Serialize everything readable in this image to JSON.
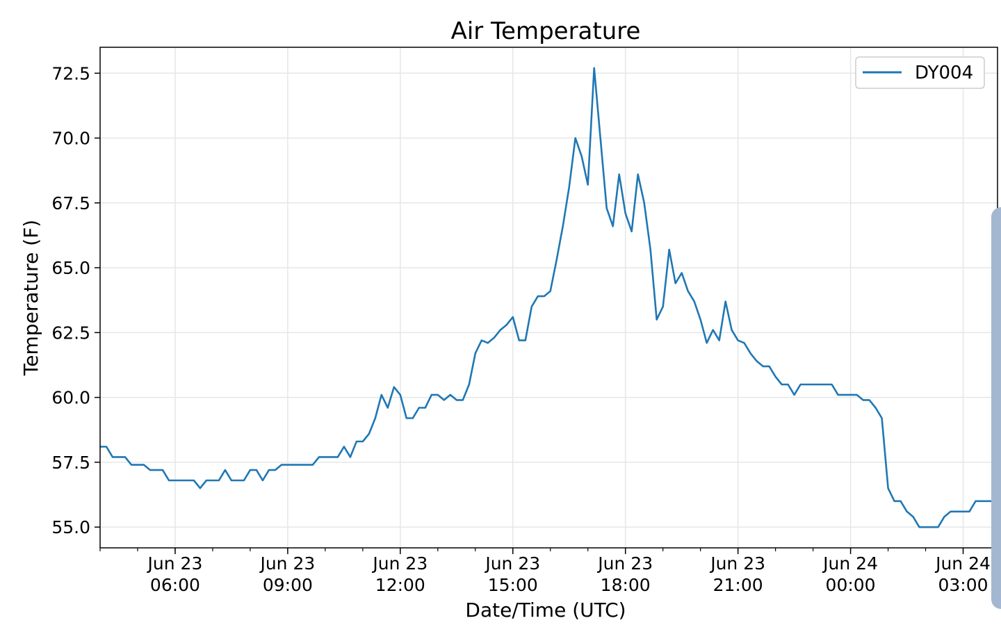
{
  "chart_data": {
    "type": "line",
    "title": "Air Temperature",
    "xlabel": "Date/Time (UTC)",
    "ylabel": "Temperature (F)",
    "xlim": [
      "2023-06-23T04:00",
      "2023-06-24T03:55"
    ],
    "ylim": [
      54.2,
      73.5
    ],
    "grid": true,
    "legend_position": "top-right",
    "colors": {
      "series": "#1f77b4",
      "grid": "#e6e6e6"
    },
    "y_ticks": [
      {
        "value": 55.0,
        "label": "55.0"
      },
      {
        "value": 57.5,
        "label": "57.5"
      },
      {
        "value": 60.0,
        "label": "60.0"
      },
      {
        "value": 62.5,
        "label": "62.5"
      },
      {
        "value": 65.0,
        "label": "65.0"
      },
      {
        "value": 67.5,
        "label": "67.5"
      },
      {
        "value": 70.0,
        "label": "70.0"
      },
      {
        "value": 72.5,
        "label": "72.5"
      }
    ],
    "x_ticks": [
      {
        "value": "2023-06-23T06:00",
        "line1": "Jun 23",
        "line2": "06:00"
      },
      {
        "value": "2023-06-23T09:00",
        "line1": "Jun 23",
        "line2": "09:00"
      },
      {
        "value": "2023-06-23T12:00",
        "line1": "Jun 23",
        "line2": "12:00"
      },
      {
        "value": "2023-06-23T15:00",
        "line1": "Jun 23",
        "line2": "15:00"
      },
      {
        "value": "2023-06-23T18:00",
        "line1": "Jun 23",
        "line2": "18:00"
      },
      {
        "value": "2023-06-23T21:00",
        "line1": "Jun 23",
        "line2": "21:00"
      },
      {
        "value": "2023-06-24T00:00",
        "line1": "Jun 24",
        "line2": "00:00"
      },
      {
        "value": "2023-06-24T03:00",
        "line1": "Jun 24",
        "line2": "03:00"
      }
    ],
    "series": [
      {
        "name": "DY004",
        "points": [
          [
            "2023-06-23T04:00",
            58.1
          ],
          [
            "2023-06-23T04:10",
            58.1
          ],
          [
            "2023-06-23T04:20",
            57.7
          ],
          [
            "2023-06-23T04:40",
            57.7
          ],
          [
            "2023-06-23T04:50",
            57.4
          ],
          [
            "2023-06-23T05:10",
            57.4
          ],
          [
            "2023-06-23T05:20",
            57.2
          ],
          [
            "2023-06-23T05:40",
            57.2
          ],
          [
            "2023-06-23T05:50",
            56.8
          ],
          [
            "2023-06-23T06:30",
            56.8
          ],
          [
            "2023-06-23T06:40",
            56.5
          ],
          [
            "2023-06-23T06:50",
            56.8
          ],
          [
            "2023-06-23T07:10",
            56.8
          ],
          [
            "2023-06-23T07:20",
            57.2
          ],
          [
            "2023-06-23T07:30",
            56.8
          ],
          [
            "2023-06-23T07:50",
            56.8
          ],
          [
            "2023-06-23T08:00",
            57.2
          ],
          [
            "2023-06-23T08:10",
            57.2
          ],
          [
            "2023-06-23T08:20",
            56.8
          ],
          [
            "2023-06-23T08:30",
            57.2
          ],
          [
            "2023-06-23T08:40",
            57.2
          ],
          [
            "2023-06-23T08:50",
            57.4
          ],
          [
            "2023-06-23T09:40",
            57.4
          ],
          [
            "2023-06-23T09:50",
            57.7
          ],
          [
            "2023-06-23T10:20",
            57.7
          ],
          [
            "2023-06-23T10:30",
            58.1
          ],
          [
            "2023-06-23T10:40",
            57.7
          ],
          [
            "2023-06-23T10:50",
            58.3
          ],
          [
            "2023-06-23T11:00",
            58.3
          ],
          [
            "2023-06-23T11:10",
            58.6
          ],
          [
            "2023-06-23T11:20",
            59.2
          ],
          [
            "2023-06-23T11:30",
            60.1
          ],
          [
            "2023-06-23T11:40",
            59.6
          ],
          [
            "2023-06-23T11:50",
            60.4
          ],
          [
            "2023-06-23T12:00",
            60.1
          ],
          [
            "2023-06-23T12:10",
            59.2
          ],
          [
            "2023-06-23T12:20",
            59.2
          ],
          [
            "2023-06-23T12:30",
            59.6
          ],
          [
            "2023-06-23T12:40",
            59.6
          ],
          [
            "2023-06-23T12:50",
            60.1
          ],
          [
            "2023-06-23T13:00",
            60.1
          ],
          [
            "2023-06-23T13:10",
            59.9
          ],
          [
            "2023-06-23T13:20",
            60.1
          ],
          [
            "2023-06-23T13:30",
            59.9
          ],
          [
            "2023-06-23T13:40",
            59.9
          ],
          [
            "2023-06-23T13:50",
            60.5
          ],
          [
            "2023-06-23T14:00",
            61.7
          ],
          [
            "2023-06-23T14:10",
            62.2
          ],
          [
            "2023-06-23T14:20",
            62.1
          ],
          [
            "2023-06-23T14:30",
            62.3
          ],
          [
            "2023-06-23T14:40",
            62.6
          ],
          [
            "2023-06-23T14:50",
            62.8
          ],
          [
            "2023-06-23T15:00",
            63.1
          ],
          [
            "2023-06-23T15:10",
            62.2
          ],
          [
            "2023-06-23T15:20",
            62.2
          ],
          [
            "2023-06-23T15:30",
            63.5
          ],
          [
            "2023-06-23T15:40",
            63.9
          ],
          [
            "2023-06-23T15:50",
            63.9
          ],
          [
            "2023-06-23T16:00",
            64.1
          ],
          [
            "2023-06-23T16:10",
            65.3
          ],
          [
            "2023-06-23T16:20",
            66.6
          ],
          [
            "2023-06-23T16:30",
            68.1
          ],
          [
            "2023-06-23T16:40",
            70.0
          ],
          [
            "2023-06-23T16:50",
            69.3
          ],
          [
            "2023-06-23T17:00",
            68.2
          ],
          [
            "2023-06-23T17:10",
            72.7
          ],
          [
            "2023-06-23T17:20",
            70.0
          ],
          [
            "2023-06-23T17:30",
            67.3
          ],
          [
            "2023-06-23T17:40",
            66.6
          ],
          [
            "2023-06-23T17:50",
            68.6
          ],
          [
            "2023-06-23T18:00",
            67.1
          ],
          [
            "2023-06-23T18:10",
            66.4
          ],
          [
            "2023-06-23T18:20",
            68.6
          ],
          [
            "2023-06-23T18:30",
            67.5
          ],
          [
            "2023-06-23T18:40",
            65.7
          ],
          [
            "2023-06-23T18:50",
            63.0
          ],
          [
            "2023-06-23T19:00",
            63.5
          ],
          [
            "2023-06-23T19:10",
            65.7
          ],
          [
            "2023-06-23T19:20",
            64.4
          ],
          [
            "2023-06-23T19:30",
            64.8
          ],
          [
            "2023-06-23T19:40",
            64.1
          ],
          [
            "2023-06-23T19:50",
            63.7
          ],
          [
            "2023-06-23T20:00",
            63.0
          ],
          [
            "2023-06-23T20:10",
            62.1
          ],
          [
            "2023-06-23T20:20",
            62.6
          ],
          [
            "2023-06-23T20:30",
            62.2
          ],
          [
            "2023-06-23T20:40",
            63.7
          ],
          [
            "2023-06-23T20:50",
            62.6
          ],
          [
            "2023-06-23T21:00",
            62.2
          ],
          [
            "2023-06-23T21:10",
            62.1
          ],
          [
            "2023-06-23T21:20",
            61.7
          ],
          [
            "2023-06-23T21:30",
            61.4
          ],
          [
            "2023-06-23T21:40",
            61.2
          ],
          [
            "2023-06-23T21:50",
            61.2
          ],
          [
            "2023-06-23T22:00",
            60.8
          ],
          [
            "2023-06-23T22:10",
            60.5
          ],
          [
            "2023-06-23T22:20",
            60.5
          ],
          [
            "2023-06-23T22:30",
            60.1
          ],
          [
            "2023-06-23T22:40",
            60.5
          ],
          [
            "2023-06-23T23:30",
            60.5
          ],
          [
            "2023-06-23T23:40",
            60.1
          ],
          [
            "2023-06-24T00:10",
            60.1
          ],
          [
            "2023-06-24T00:20",
            59.9
          ],
          [
            "2023-06-24T00:30",
            59.9
          ],
          [
            "2023-06-24T00:40",
            59.6
          ],
          [
            "2023-06-24T00:50",
            59.2
          ],
          [
            "2023-06-24T01:00",
            56.5
          ],
          [
            "2023-06-24T01:10",
            56.0
          ],
          [
            "2023-06-24T01:20",
            56.0
          ],
          [
            "2023-06-24T01:30",
            55.6
          ],
          [
            "2023-06-24T01:40",
            55.4
          ],
          [
            "2023-06-24T01:50",
            55.0
          ],
          [
            "2023-06-24T02:20",
            55.0
          ],
          [
            "2023-06-24T02:30",
            55.4
          ],
          [
            "2023-06-24T02:40",
            55.6
          ],
          [
            "2023-06-24T03:10",
            55.6
          ],
          [
            "2023-06-24T03:20",
            56.0
          ],
          [
            "2023-06-24T03:55",
            56.0
          ]
        ]
      }
    ]
  }
}
